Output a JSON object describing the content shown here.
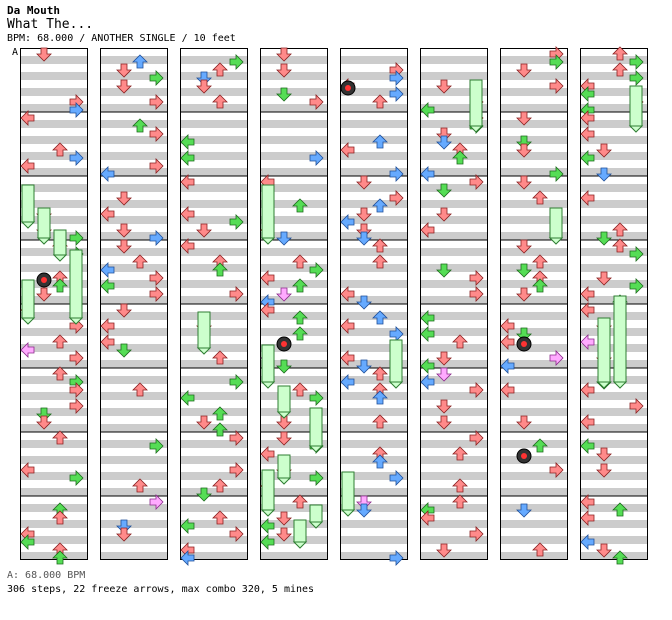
{
  "header": {
    "artist": "Da Mouth",
    "title": "What The...",
    "meta": "BPM: 68.000 / ANOTHER SINGLE / 10 feet"
  },
  "section_marker": "A",
  "footer": {
    "bpm_line": "A: 68.000 BPM",
    "stats_line": "306 steps, 22 freeze arrows, max combo 320, 5 mines"
  },
  "colors": {
    "red_arrow": "#ff8a8a",
    "green_arrow": "#55dd55",
    "blue_arrow": "#66aaff",
    "pink_arrow": "#ffaaff",
    "freeze_body": "#ccffcc",
    "stripe": "#cccccc",
    "mine": "#ff3333"
  },
  "chart_stats": {
    "columns": 8,
    "measures_per_column": 8,
    "lanes": [
      "left",
      "down",
      "up",
      "right"
    ]
  }
}
